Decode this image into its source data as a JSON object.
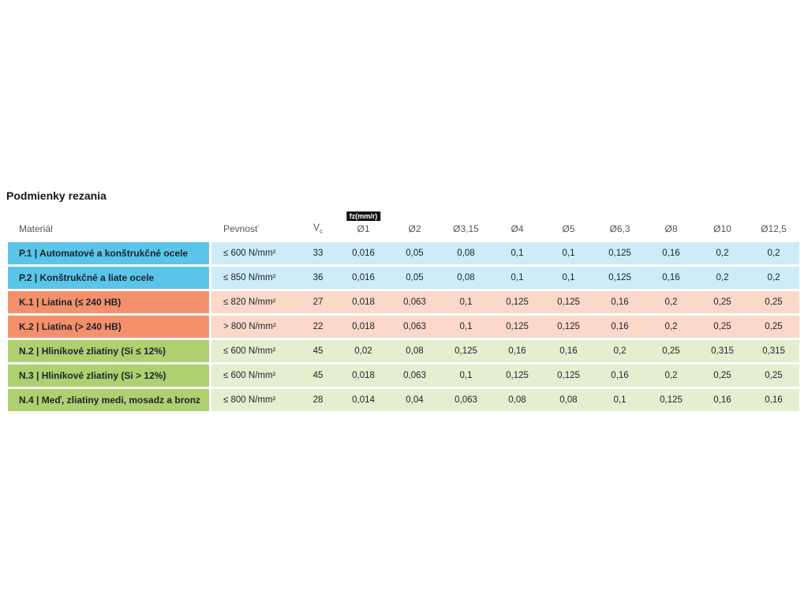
{
  "page": {
    "background": "#ffffff"
  },
  "chart_data": {
    "type": "table",
    "title": "Podmienky rezania",
    "fz_unit_badge": "fz(mm/r)",
    "header": {
      "material": "Materiál",
      "strength": "Pevnosť",
      "vc_symbol": "V",
      "vc_subscript": "c",
      "diameter_columns": [
        "Ø1",
        "Ø2",
        "Ø3,15",
        "Ø4",
        "Ø5",
        "Ø6,3",
        "Ø8",
        "Ø10",
        "Ø12,5"
      ]
    },
    "group_colors": {
      "blue": {
        "solid": "#5ac4e9",
        "tint": "#cdecf8"
      },
      "orange": {
        "solid": "#f4906b",
        "tint": "#fbd8c8"
      },
      "green": {
        "solid": "#aed06f",
        "tint": "#e5eecf"
      }
    },
    "rows": [
      {
        "group": "blue",
        "material": "P.1 | Automatové a konštrukčné ocele",
        "strength": "≤ 600 N/mm²",
        "vc": "33",
        "fz": [
          "0,016",
          "0,05",
          "0,08",
          "0,1",
          "0,1",
          "0,125",
          "0,16",
          "0,2",
          "0,2"
        ]
      },
      {
        "group": "blue",
        "material": "P.2 | Konštrukčné a liate ocele",
        "strength": "≤ 850 N/mm²",
        "vc": "36",
        "fz": [
          "0,016",
          "0,05",
          "0,08",
          "0,1",
          "0,1",
          "0,125",
          "0,16",
          "0,2",
          "0,2"
        ]
      },
      {
        "group": "orange",
        "material": "K.1 | Liatina (≤ 240 HB)",
        "strength": "≤ 820 N/mm²",
        "vc": "27",
        "fz": [
          "0,018",
          "0,063",
          "0,1",
          "0,125",
          "0,125",
          "0,16",
          "0,2",
          "0,25",
          "0,25"
        ]
      },
      {
        "group": "orange",
        "material": "K.2 | Liatina (> 240 HB)",
        "strength": "> 800 N/mm²",
        "vc": "22",
        "fz": [
          "0,018",
          "0,063",
          "0,1",
          "0,125",
          "0,125",
          "0,16",
          "0,2",
          "0,25",
          "0,25"
        ]
      },
      {
        "group": "green",
        "material": "N.2 | Hliníkové zliatiny (Si ≤ 12%)",
        "strength": "≤ 600 N/mm²",
        "vc": "45",
        "fz": [
          "0,02",
          "0,08",
          "0,125",
          "0,16",
          "0,16",
          "0,2",
          "0,25",
          "0,315",
          "0,315"
        ]
      },
      {
        "group": "green",
        "material": "N.3 | Hliníkové zliatiny (Si > 12%)",
        "strength": "≤ 600 N/mm²",
        "vc": "45",
        "fz": [
          "0,018",
          "0,063",
          "0,1",
          "0,125",
          "0,125",
          "0,16",
          "0,2",
          "0,25",
          "0,25"
        ]
      },
      {
        "group": "green",
        "material": "N.4 | Meď, zliatiny medi, mosadz a bronz",
        "strength": "≤ 800 N/mm²",
        "vc": "28",
        "fz": [
          "0,014",
          "0,04",
          "0,063",
          "0,08",
          "0,08",
          "0,1",
          "0,125",
          "0,16",
          "0,16"
        ]
      }
    ]
  }
}
